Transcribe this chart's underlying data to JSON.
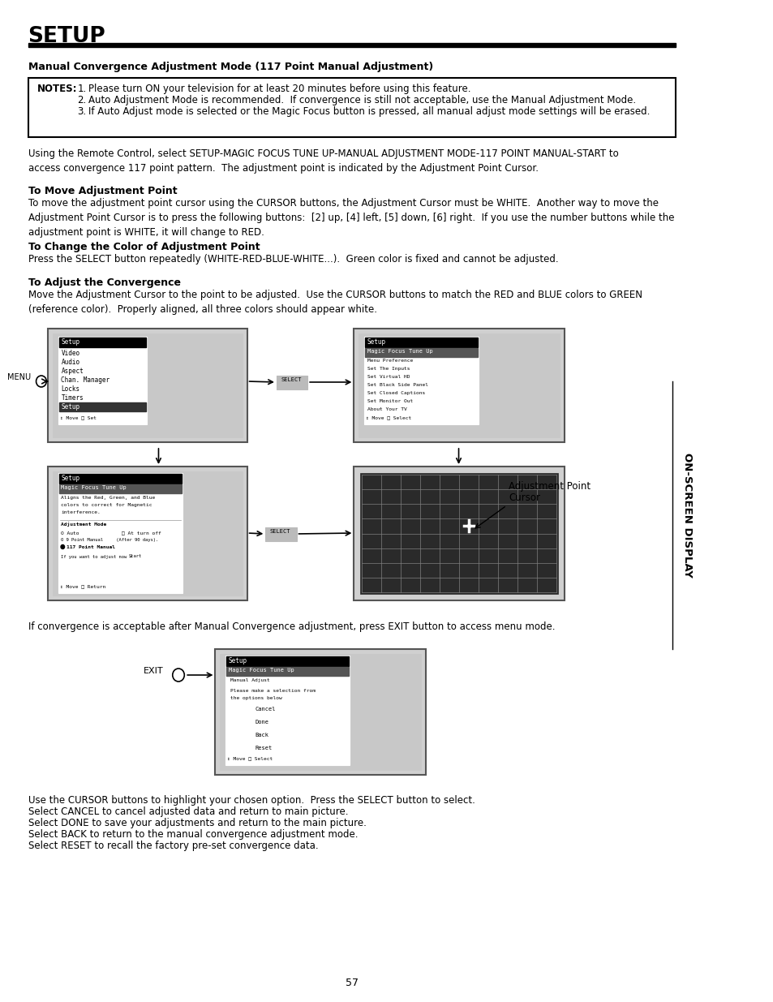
{
  "title": "SETUP",
  "page_number": "57",
  "section_heading": "Manual Convergence Adjustment Mode (117 Point Manual Adjustment)",
  "notes": [
    "Please turn ON your television for at least 20 minutes before using this feature.",
    "Auto Adjustment Mode is recommended.  If convergence is still not acceptable, use the Manual Adjustment Mode.",
    "If Auto Adjust mode is selected or the Magic Focus button is pressed, all manual adjust mode settings will be erased."
  ],
  "para1": "Using the Remote Control, select SETUP-MAGIC FOCUS TUNE UP-MANUAL ADJUSTMENT MODE-117 POINT MANUAL-START to\naccess convergence 117 point pattern.  The adjustment point is indicated by the Adjustment Point Cursor.",
  "subhead1": "To Move Adjustment Point",
  "para2": "To move the adjustment point cursor using the CURSOR buttons, the Adjustment Cursor must be WHITE.  Another way to move the\nAdjustment Point Cursor is to press the following buttons:  [2] up, [4] left, [5] down, [6] right.  If you use the number buttons while the\nadjustment point is WHITE, it will change to RED.",
  "subhead2": "To Change the Color of Adjustment Point",
  "para3": "Press the SELECT button repeatedly (WHITE-RED-BLUE-WHITE...).  Green color is fixed and cannot be adjusted.",
  "subhead3": "To Adjust the Convergence",
  "para4": "Move the Adjustment Cursor to the point to be adjusted.  Use the CURSOR buttons to match the RED and BLUE colors to GREEN\n(reference color).  Properly aligned, all three colors should appear white.",
  "para5": "If convergence is acceptable after Manual Convergence adjustment, press EXIT button to access menu mode.",
  "para6_lines": [
    "Use the CURSOR buttons to highlight your chosen option.  Press the SELECT button to select.",
    "Select CANCEL to cancel adjusted data and return to main picture.",
    "Select DONE to save your adjustments and return to the main picture.",
    "Select BACK to return to the manual convergence adjustment mode.",
    "Select RESET to recall the factory pre-set convergence data."
  ],
  "sidebar_text": "ON-SCREEN DISPLAY",
  "bg_color": "#ffffff",
  "text_color": "#000000",
  "menu1_items": [
    "Video",
    "Audio",
    "Aspect",
    "Chan. Manager",
    "Locks",
    "Timers",
    "Setup"
  ],
  "menu2_items": [
    "Menu Preference",
    "Set The Inputs",
    "Set Virtual HD",
    "Set Black Side Panel",
    "Set Closed Captions",
    "Set Monitor Out",
    "About Your TV"
  ],
  "btn_items": [
    "Cancel",
    "Done",
    "Back",
    "Reset"
  ]
}
